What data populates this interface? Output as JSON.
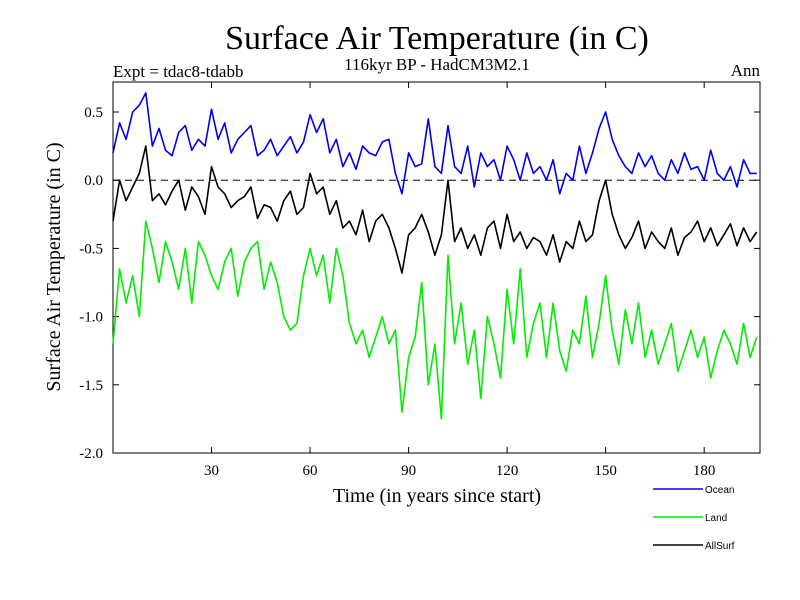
{
  "chart_data": {
    "type": "line",
    "title": "Surface Air Temperature (in C)",
    "subtitle": "116kyr BP - HadCM3M2.1",
    "left_label": "Expt = tdac8-tdabb",
    "right_label": "Ann",
    "xlabel": "Time (in years since start)",
    "ylabel": "Surface Air Temperature (in C)",
    "xlim": [
      0,
      197
    ],
    "ylim": [
      -2.0,
      0.8
    ],
    "xticks": [
      30,
      60,
      90,
      120,
      150,
      180
    ],
    "xtick_labels": [
      "30",
      "60",
      "90",
      "120",
      "150",
      "180"
    ],
    "yticks": [
      0.5,
      0.0,
      -0.5,
      -1.0,
      -1.5,
      -2.0
    ],
    "ytick_labels": [
      "0.5",
      "0.0",
      "-0.5",
      "-1.0",
      "-1.5",
      "-2.0"
    ],
    "reference_line": {
      "y": 0.0,
      "style": "dashed"
    },
    "legend": [
      "Ocean",
      "Land",
      "AllSurf"
    ],
    "x": [
      0,
      2,
      4,
      6,
      8,
      10,
      12,
      14,
      16,
      18,
      20,
      22,
      24,
      26,
      28,
      30,
      32,
      34,
      36,
      38,
      40,
      42,
      44,
      46,
      48,
      50,
      52,
      54,
      56,
      58,
      60,
      62,
      64,
      66,
      68,
      70,
      72,
      74,
      76,
      78,
      80,
      82,
      84,
      86,
      88,
      90,
      92,
      94,
      96,
      98,
      100,
      102,
      104,
      106,
      108,
      110,
      112,
      114,
      116,
      118,
      120,
      122,
      124,
      126,
      128,
      130,
      132,
      134,
      136,
      138,
      140,
      142,
      144,
      146,
      148,
      150,
      152,
      154,
      156,
      158,
      160,
      162,
      164,
      166,
      168,
      170,
      172,
      174,
      176,
      178,
      180,
      182,
      184,
      186,
      188,
      190,
      192,
      194,
      196
    ],
    "series": [
      {
        "name": "Ocean",
        "color": "#0000ee",
        "values": [
          0.2,
          0.42,
          0.3,
          0.5,
          0.55,
          0.64,
          0.25,
          0.38,
          0.22,
          0.18,
          0.35,
          0.4,
          0.22,
          0.3,
          0.25,
          0.52,
          0.3,
          0.42,
          0.2,
          0.3,
          0.35,
          0.4,
          0.18,
          0.22,
          0.3,
          0.18,
          0.25,
          0.32,
          0.2,
          0.28,
          0.48,
          0.35,
          0.45,
          0.2,
          0.3,
          0.1,
          0.2,
          0.08,
          0.25,
          0.2,
          0.18,
          0.28,
          0.3,
          0.05,
          -0.1,
          0.2,
          0.1,
          0.12,
          0.45,
          0.1,
          0.05,
          0.4,
          0.1,
          0.05,
          0.25,
          -0.05,
          0.2,
          0.1,
          0.15,
          0.0,
          0.25,
          0.15,
          0.0,
          0.2,
          0.05,
          0.1,
          0.0,
          0.15,
          -0.1,
          0.05,
          0.0,
          0.25,
          0.05,
          0.2,
          0.38,
          0.5,
          0.3,
          0.18,
          0.1,
          0.05,
          0.2,
          0.1,
          0.18,
          0.05,
          0.0,
          0.15,
          0.05,
          0.2,
          0.08,
          0.1,
          0.0,
          0.22,
          0.05,
          0.0,
          0.1,
          -0.05,
          0.15,
          0.05,
          0.05
        ]
      },
      {
        "name": "Land",
        "color": "#00ee00",
        "values": [
          -1.2,
          -0.65,
          -0.9,
          -0.7,
          -1.0,
          -0.3,
          -0.5,
          -0.75,
          -0.45,
          -0.6,
          -0.8,
          -0.5,
          -0.9,
          -0.45,
          -0.55,
          -0.7,
          -0.8,
          -0.6,
          -0.5,
          -0.85,
          -0.6,
          -0.5,
          -0.45,
          -0.8,
          -0.6,
          -0.75,
          -1.0,
          -1.1,
          -1.05,
          -0.7,
          -0.5,
          -0.7,
          -0.55,
          -0.9,
          -0.5,
          -0.7,
          -1.05,
          -1.2,
          -1.1,
          -1.3,
          -1.15,
          -1.0,
          -1.2,
          -1.1,
          -1.7,
          -1.3,
          -1.15,
          -0.75,
          -1.5,
          -1.2,
          -1.75,
          -0.55,
          -1.2,
          -0.9,
          -1.35,
          -1.1,
          -1.6,
          -1.0,
          -1.2,
          -1.45,
          -0.8,
          -1.2,
          -0.65,
          -1.3,
          -1.05,
          -0.9,
          -1.3,
          -0.9,
          -1.25,
          -1.4,
          -1.1,
          -1.2,
          -0.85,
          -1.3,
          -1.05,
          -0.7,
          -1.1,
          -1.35,
          -0.95,
          -1.2,
          -0.9,
          -1.3,
          -1.1,
          -1.35,
          -1.2,
          -1.05,
          -1.4,
          -1.25,
          -1.1,
          -1.3,
          -1.15,
          -1.45,
          -1.25,
          -1.1,
          -1.2,
          -1.35,
          -1.05,
          -1.3,
          -1.15
        ]
      },
      {
        "name": "AllSurf",
        "color": "#000000",
        "values": [
          -0.3,
          0.0,
          -0.15,
          -0.05,
          0.05,
          0.25,
          -0.15,
          -0.1,
          -0.18,
          -0.08,
          0.0,
          -0.22,
          -0.05,
          -0.12,
          -0.25,
          0.1,
          -0.05,
          -0.1,
          -0.2,
          -0.15,
          -0.12,
          -0.05,
          -0.28,
          -0.18,
          -0.2,
          -0.3,
          -0.15,
          -0.08,
          -0.25,
          -0.2,
          0.05,
          -0.1,
          -0.05,
          -0.25,
          -0.15,
          -0.35,
          -0.3,
          -0.4,
          -0.22,
          -0.45,
          -0.3,
          -0.25,
          -0.35,
          -0.5,
          -0.68,
          -0.4,
          -0.35,
          -0.25,
          -0.38,
          -0.55,
          -0.4,
          0.0,
          -0.45,
          -0.35,
          -0.5,
          -0.4,
          -0.55,
          -0.35,
          -0.3,
          -0.5,
          -0.25,
          -0.45,
          -0.38,
          -0.5,
          -0.42,
          -0.45,
          -0.55,
          -0.4,
          -0.6,
          -0.45,
          -0.5,
          -0.3,
          -0.45,
          -0.4,
          -0.15,
          0.0,
          -0.25,
          -0.4,
          -0.5,
          -0.42,
          -0.3,
          -0.5,
          -0.38,
          -0.45,
          -0.5,
          -0.35,
          -0.55,
          -0.42,
          -0.38,
          -0.3,
          -0.45,
          -0.35,
          -0.48,
          -0.4,
          -0.32,
          -0.48,
          -0.35,
          -0.45,
          -0.38
        ]
      }
    ]
  }
}
